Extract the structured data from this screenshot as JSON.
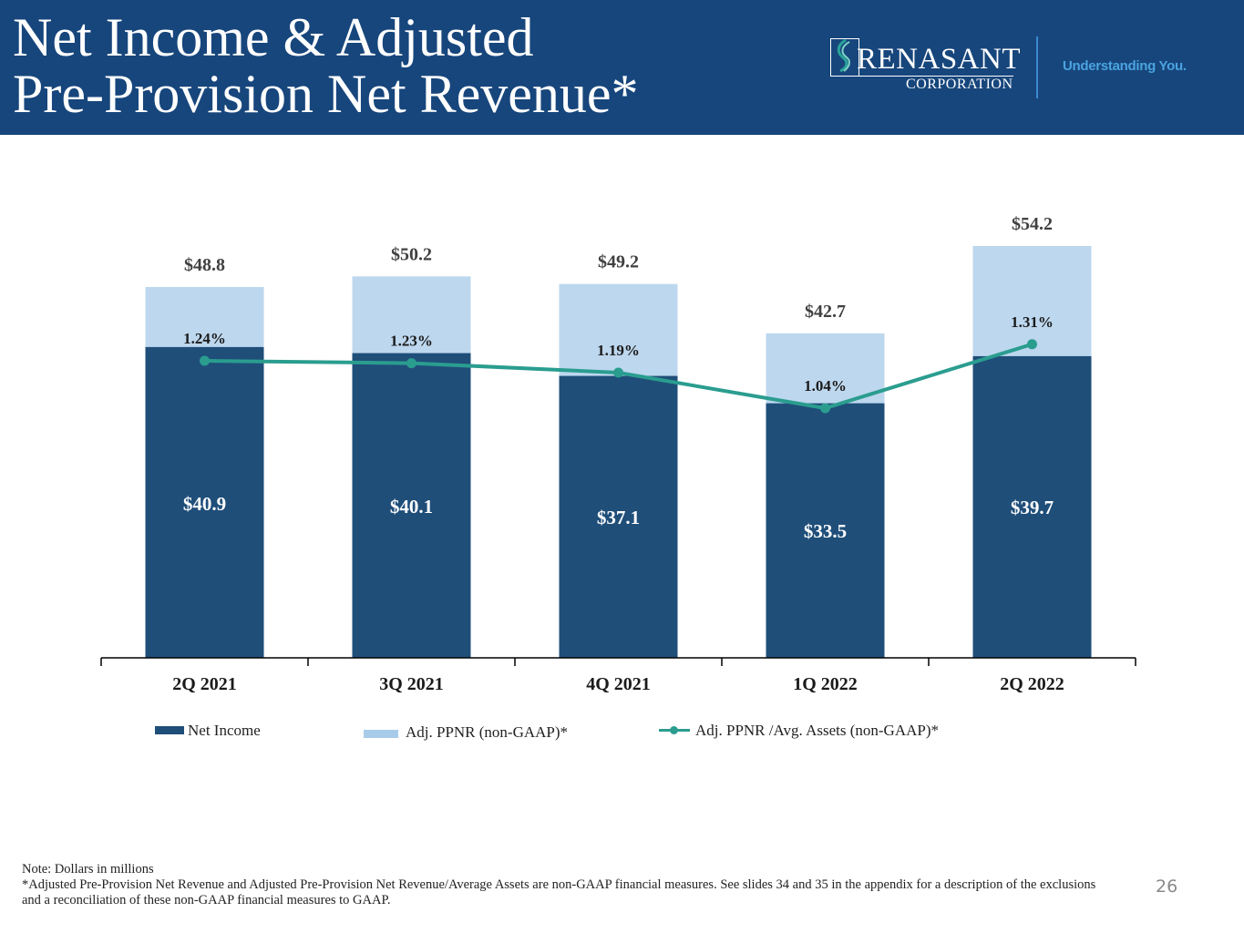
{
  "header": {
    "title_line1": "Net Income & Adjusted",
    "title_line2": "Pre-Provision Net Revenue*",
    "logo_name": "RENASANT",
    "logo_sub": "CORPORATION",
    "tagline": "Understanding You."
  },
  "colors": {
    "header_bg": "#17467c",
    "net_income": "#1f4e79",
    "adj_ppnr": "#bdd7ee",
    "line": "#2a9d8f"
  },
  "chart_data": {
    "type": "bar",
    "stacked": true,
    "title": "Net Income & Adjusted Pre-Provision Net Revenue*",
    "xlabel": "",
    "ylabel": "",
    "units": "Dollars in millions",
    "categories": [
      "2Q 2021",
      "3Q 2021",
      "4Q 2021",
      "1Q 2022",
      "2Q 2022"
    ],
    "series": [
      {
        "name": "Net Income",
        "kind": "bar",
        "values": [
          40.9,
          40.1,
          37.1,
          33.5,
          39.7
        ],
        "labels": [
          "$40.9",
          "$40.1",
          "$37.1",
          "$33.5",
          "$39.7"
        ]
      },
      {
        "name": "Adj. PPNR (non-GAAP)*",
        "kind": "bar-overlay-total",
        "values": [
          48.8,
          50.2,
          49.2,
          42.7,
          54.2
        ],
        "labels": [
          "$48.8",
          "$50.2",
          "$49.2",
          "$42.7",
          "$54.2"
        ]
      },
      {
        "name": "Adj. PPNR /Avg. Assets (non-GAAP)*",
        "kind": "line",
        "axis": "secondary",
        "values": [
          1.24,
          1.23,
          1.19,
          1.04,
          1.31
        ],
        "labels": [
          "1.24%",
          "1.23%",
          "1.19%",
          "1.04%",
          "1.31%"
        ]
      }
    ],
    "ylim": [
      0,
      54.2
    ],
    "y2lim": [
      1.0,
      1.35
    ],
    "grid": false,
    "y_axis_visible": false,
    "legend": "bottom"
  },
  "legend": {
    "net_income": "Net Income",
    "adj_ppnr": "Adj. PPNR (non-GAAP)*",
    "ratio": "Adj. PPNR /Avg. Assets (non-GAAP)*"
  },
  "footnote": {
    "line1": "Note: Dollars in millions",
    "line2": "*Adjusted Pre-Provision Net Revenue and Adjusted Pre-Provision Net Revenue/Average Assets are non-GAAP financial measures. See slides 34 and 35 in the appendix for a description of the exclusions and a reconciliation of these non-GAAP financial measures to GAAP."
  },
  "page_number": "26"
}
